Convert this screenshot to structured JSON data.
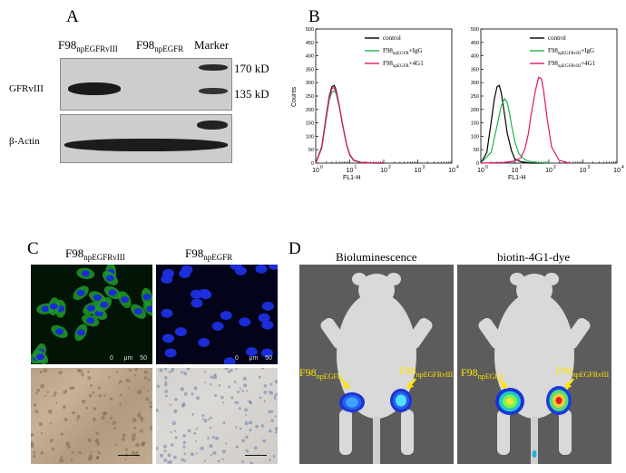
{
  "panels": {
    "a": {
      "letter": "A",
      "col1_main": "F98",
      "col1_sub": "npEGFRvIII",
      "col2_main": "F98",
      "col2_sub": "npEGFR",
      "col3": "Marker",
      "row1": "GFRvIII",
      "row2": "β-Actin",
      "marker_hi": "170 kD",
      "marker_lo": "135 kD"
    },
    "b": {
      "letter": "B",
      "left": {
        "legend": [
          {
            "main": "control",
            "sub": "",
            "suffix": "",
            "color": "#000000"
          },
          {
            "main": "F98",
            "sub": "npEGFR",
            "suffix": "+IgG",
            "color": "#22b24c"
          },
          {
            "main": "F98",
            "sub": "npEGFR",
            "suffix": "+4G1",
            "color": "#e0156b"
          }
        ]
      },
      "right": {
        "legend": [
          {
            "main": "control",
            "sub": "",
            "suffix": "",
            "color": "#000000"
          },
          {
            "main": "F98",
            "sub": "npEGFRvIII",
            "suffix": "+IgG",
            "color": "#22b24c"
          },
          {
            "main": "F98",
            "sub": "npEGFRvIII",
            "suffix": "+4G1",
            "color": "#e0156b"
          }
        ]
      },
      "ylabel": "Counts",
      "xlabel": "FL1-H",
      "yticks": [
        "0",
        "50",
        "100",
        "150",
        "200",
        "250",
        "300",
        "350",
        "400",
        "450",
        "500"
      ],
      "xticks": [
        "10",
        "10",
        "10",
        "10",
        "10"
      ],
      "xtick_exps": [
        "0",
        "1",
        "2",
        "3",
        "4"
      ]
    },
    "c": {
      "letter": "C",
      "col1_main": "F98",
      "col1_sub": "npEGFRvIII",
      "col2_main": "F98",
      "col2_sub": "npEGFR",
      "scale1": "0      μm    50",
      "scale2": "0      μm    50"
    },
    "d": {
      "letter": "D",
      "title1": "Bioluminescence",
      "title2": "biotin-4G1-dye",
      "arrow_left_main": "F98",
      "arrow_left_sub": "npEGFR",
      "arrow_right_main": "F98",
      "arrow_right_sub": "npEGFRvIII"
    }
  },
  "chart_data": [
    {
      "type": "line",
      "title": "",
      "xlabel": "FL1-H",
      "ylabel": "Counts",
      "xscale": "log",
      "xlim": [
        1,
        10000
      ],
      "ylim": [
        0,
        500
      ],
      "series": [
        {
          "name": "control",
          "x": [
            1,
            1.5,
            2,
            2.5,
            3,
            3.5,
            4,
            5,
            6,
            8,
            10,
            13,
            20,
            50,
            100
          ],
          "y": [
            0,
            60,
            170,
            250,
            285,
            290,
            270,
            210,
            150,
            70,
            30,
            10,
            3,
            0,
            0
          ]
        },
        {
          "name": "F98npEGFR+IgG",
          "x": [
            1,
            1.5,
            2,
            2.5,
            3,
            3.5,
            4,
            5,
            6,
            8,
            10,
            13,
            20,
            50,
            100
          ],
          "y": [
            0,
            55,
            160,
            235,
            265,
            270,
            258,
            205,
            150,
            72,
            32,
            12,
            3,
            0,
            0
          ]
        },
        {
          "name": "F98npEGFR+4G1",
          "x": [
            1,
            1.5,
            2,
            2.5,
            3,
            3.5,
            4,
            5,
            6,
            8,
            10,
            13,
            20,
            50,
            100
          ],
          "y": [
            0,
            58,
            165,
            245,
            278,
            282,
            265,
            208,
            152,
            72,
            31,
            11,
            3,
            0,
            0
          ]
        }
      ]
    },
    {
      "type": "line",
      "title": "",
      "xlabel": "FL1-H",
      "ylabel": "Counts",
      "xscale": "log",
      "xlim": [
        1,
        10000
      ],
      "ylim": [
        0,
        500
      ],
      "series": [
        {
          "name": "control",
          "x": [
            1,
            1.5,
            2,
            2.5,
            3,
            3.5,
            4,
            5,
            6,
            8,
            10,
            15,
            30,
            100
          ],
          "y": [
            0,
            40,
            150,
            240,
            285,
            290,
            260,
            180,
            110,
            45,
            15,
            5,
            0,
            0
          ]
        },
        {
          "name": "F98npEGFRvIII+IgG",
          "x": [
            1,
            2,
            3,
            4,
            5,
            6,
            7,
            8,
            10,
            13,
            20,
            30,
            50,
            100
          ],
          "y": [
            0,
            40,
            140,
            215,
            240,
            225,
            185,
            140,
            80,
            35,
            12,
            5,
            2,
            0
          ]
        },
        {
          "name": "F98npEGFRvIII+4G1",
          "x": [
            1,
            5,
            10,
            15,
            20,
            25,
            30,
            40,
            50,
            60,
            70,
            90,
            120,
            200,
            400
          ],
          "y": [
            0,
            2,
            8,
            20,
            55,
            110,
            180,
            270,
            320,
            315,
            270,
            160,
            60,
            10,
            0
          ]
        }
      ]
    }
  ]
}
